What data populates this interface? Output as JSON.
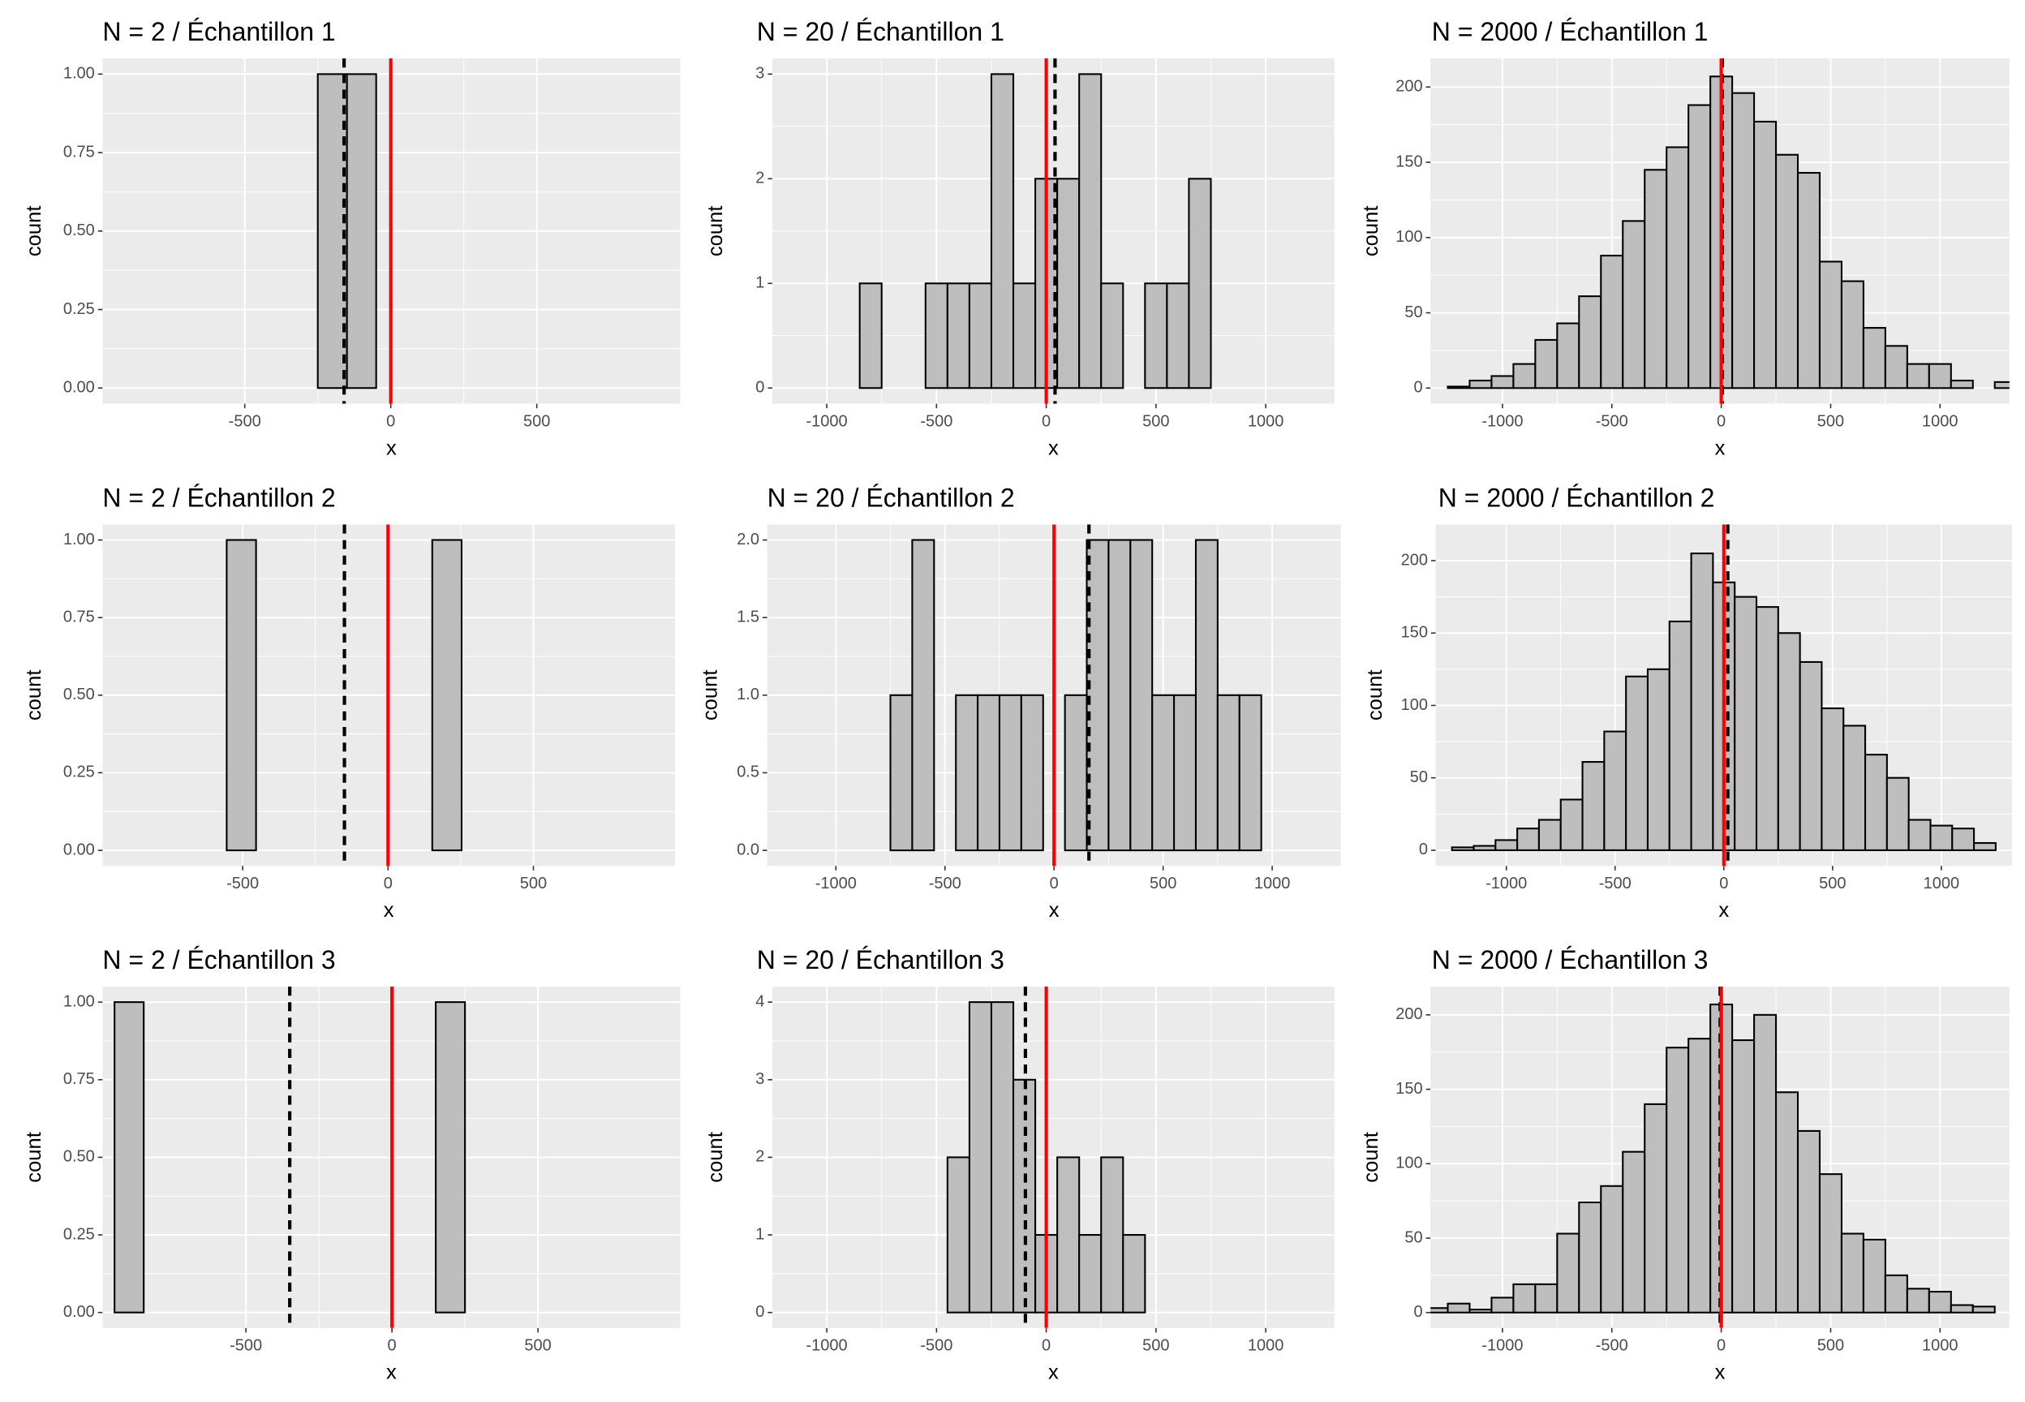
{
  "chart_data": [
    {
      "type": "histogram",
      "title": "N = 2 / Échantillon 1",
      "xlabel": "x",
      "ylabel": "count",
      "bins": [
        -250,
        -150,
        -50,
        50
      ],
      "counts": [
        1,
        1,
        0
      ],
      "xlim": [
        -987,
        991
      ],
      "ylim": [
        -0.05,
        1.05
      ],
      "xticks": [
        -500,
        0,
        500
      ],
      "yticks": [
        {
          "value": 0,
          "label": "0.00"
        },
        {
          "value": 0.25,
          "label": "0.25"
        },
        {
          "value": 0.5,
          "label": "0.50"
        },
        {
          "value": 0.75,
          "label": "0.75"
        },
        {
          "value": 1,
          "label": "1.00"
        }
      ],
      "vlines": [
        {
          "value": -160,
          "color": "#000000",
          "linetype": "dashed"
        },
        {
          "value": 0,
          "color": "#ff0000",
          "linetype": "solid"
        }
      ],
      "color": "#bebebe",
      "edgecolor": "#000000",
      "grid": true
    },
    {
      "type": "histogram",
      "title": "N = 20 / Échantillon 1",
      "xlabel": "x",
      "ylabel": "count",
      "bins": [
        -850,
        -750,
        -650,
        -550,
        -450,
        -350,
        -250,
        -150,
        -50,
        50,
        150,
        250,
        350,
        450,
        550,
        650,
        750
      ],
      "counts": [
        1,
        0,
        0,
        1,
        1,
        1,
        3,
        1,
        2,
        2,
        3,
        1,
        0,
        1,
        1,
        2
      ],
      "xlim": [
        -1248,
        1313
      ],
      "ylim": [
        -0.15,
        3.15
      ],
      "xticks": [
        -1000,
        -500,
        0,
        500,
        1000
      ],
      "yticks": [
        0,
        1,
        2,
        3
      ],
      "vlines": [
        {
          "value": 40,
          "color": "#000000",
          "linetype": "dashed"
        },
        {
          "value": 0,
          "color": "#ff0000",
          "linetype": "solid"
        }
      ],
      "color": "#bebebe",
      "edgecolor": "#000000",
      "grid": true
    },
    {
      "type": "histogram",
      "title": "N = 2000 / Échantillon 1",
      "xlabel": "x",
      "ylabel": "count",
      "bins": [
        -1250,
        -1150,
        -1050,
        -950,
        -850,
        -750,
        -650,
        -550,
        -450,
        -350,
        -250,
        -150,
        -50,
        50,
        150,
        250,
        350,
        450,
        550,
        650,
        750,
        850,
        950,
        1050,
        1150,
        1250,
        1350
      ],
      "counts": [
        1,
        5,
        8,
        16,
        32,
        43,
        61,
        88,
        111,
        145,
        160,
        188,
        207,
        196,
        177,
        155,
        143,
        84,
        71,
        40,
        28,
        16,
        16,
        5,
        0,
        4
      ],
      "xlim": [
        -1329,
        1317
      ],
      "ylim": [
        -10.4,
        219
      ],
      "xticks": [
        -1000,
        -500,
        0,
        500,
        1000
      ],
      "yticks": [
        0,
        50,
        100,
        150,
        200
      ],
      "vlines": [
        {
          "value": 5,
          "color": "#000000",
          "linetype": "dashed"
        },
        {
          "value": 0,
          "color": "#ff0000",
          "linetype": "solid"
        }
      ],
      "color": "#bebebe",
      "edgecolor": "#000000",
      "grid": true
    },
    {
      "type": "histogram",
      "title": "N = 2 / Échantillon 2",
      "xlabel": "x",
      "ylabel": "count",
      "bins": [
        -555,
        -454,
        -353,
        -252,
        -151,
        -50,
        51,
        152,
        253
      ],
      "counts": [
        1,
        0,
        0,
        0,
        0,
        0,
        0,
        1
      ],
      "xlim": [
        -982,
        987
      ],
      "ylim": [
        -0.05,
        1.05
      ],
      "xticks": [
        -500,
        0,
        500
      ],
      "yticks": [
        {
          "value": 0,
          "label": "0.00"
        },
        {
          "value": 0.25,
          "label": "0.25"
        },
        {
          "value": 0.5,
          "label": "0.50"
        },
        {
          "value": 0.75,
          "label": "0.75"
        },
        {
          "value": 1,
          "label": "1.00"
        }
      ],
      "vlines": [
        {
          "value": -150,
          "color": "#000000",
          "linetype": "dashed"
        },
        {
          "value": 0,
          "color": "#ff0000",
          "linetype": "solid"
        }
      ],
      "color": "#bebebe",
      "edgecolor": "#000000",
      "grid": true
    },
    {
      "type": "histogram",
      "title": "N = 20 / Échantillon 2",
      "xlabel": "x",
      "ylabel": "count",
      "bins": [
        -750,
        -650,
        -550,
        -450,
        -350,
        -250,
        -150,
        -50,
        50,
        150,
        250,
        350,
        450,
        550,
        650,
        750,
        850,
        950
      ],
      "counts": [
        1,
        2,
        0,
        1,
        1,
        1,
        1,
        0,
        1,
        2,
        2,
        2,
        1,
        1,
        2,
        1,
        1
      ],
      "xlim": [
        -1315,
        1315
      ],
      "ylim": [
        -0.1,
        2.1
      ],
      "xticks": [
        -1000,
        -500,
        0,
        500,
        1000
      ],
      "yticks": [
        {
          "value": 0,
          "label": "0.0"
        },
        {
          "value": 0.5,
          "label": "0.5"
        },
        {
          "value": 1,
          "label": "1.0"
        },
        {
          "value": 1.5,
          "label": "1.5"
        },
        {
          "value": 2,
          "label": "2.0"
        }
      ],
      "vlines": [
        {
          "value": 160,
          "color": "#000000",
          "linetype": "dashed"
        },
        {
          "value": 0,
          "color": "#ff0000",
          "linetype": "solid"
        }
      ],
      "color": "#bebebe",
      "edgecolor": "#000000",
      "grid": true
    },
    {
      "type": "histogram",
      "title": "N = 2000 / Échantillon 2",
      "xlabel": "x",
      "ylabel": "count",
      "bins": [
        -1250,
        -1150,
        -1050,
        -950,
        -850,
        -750,
        -650,
        -550,
        -450,
        -350,
        -250,
        -150,
        -50,
        50,
        150,
        250,
        350,
        450,
        550,
        650,
        750,
        850,
        950,
        1050,
        1150,
        1250
      ],
      "counts": [
        2,
        3,
        7,
        15,
        21,
        35,
        61,
        82,
        120,
        125,
        158,
        205,
        185,
        175,
        168,
        150,
        130,
        98,
        86,
        66,
        50,
        21,
        17,
        15,
        5
      ],
      "xlim": [
        -1325,
        1325
      ],
      "ylim": [
        -10.8,
        225
      ],
      "xticks": [
        -1000,
        -500,
        0,
        500,
        1000
      ],
      "yticks": [
        0,
        50,
        100,
        150,
        200
      ],
      "vlines": [
        {
          "value": 18,
          "color": "#000000",
          "linetype": "dashed"
        },
        {
          "value": 0,
          "color": "#ff0000",
          "linetype": "solid"
        }
      ],
      "color": "#bebebe",
      "edgecolor": "#000000",
      "grid": true
    },
    {
      "type": "histogram",
      "title": "N = 2 / Échantillon 3",
      "xlabel": "x",
      "ylabel": "count",
      "bins": [
        -950,
        -850,
        -750,
        -650,
        -550,
        -450,
        -350,
        -250,
        -150,
        -50,
        50,
        150,
        250
      ],
      "counts": [
        1,
        0,
        0,
        0,
        0,
        0,
        0,
        0,
        0,
        0,
        0,
        1
      ],
      "xlim": [
        -991,
        987
      ],
      "ylim": [
        -0.05,
        1.05
      ],
      "xticks": [
        -500,
        0,
        500
      ],
      "yticks": [
        {
          "value": 0,
          "label": "0.00"
        },
        {
          "value": 0.25,
          "label": "0.25"
        },
        {
          "value": 0.5,
          "label": "0.50"
        },
        {
          "value": 0.75,
          "label": "0.75"
        },
        {
          "value": 1,
          "label": "1.00"
        }
      ],
      "vlines": [
        {
          "value": -350,
          "color": "#000000",
          "linetype": "dashed"
        },
        {
          "value": 0,
          "color": "#ff0000",
          "linetype": "solid"
        }
      ],
      "color": "#bebebe",
      "edgecolor": "#000000",
      "grid": true
    },
    {
      "type": "histogram",
      "title": "N = 20 / Échantillon 3",
      "xlabel": "x",
      "ylabel": "count",
      "bins": [
        -450,
        -350,
        -250,
        -150,
        -50,
        50,
        150,
        250,
        350,
        450
      ],
      "counts": [
        2,
        4,
        4,
        3,
        1,
        2,
        1,
        2,
        1
      ],
      "xlim": [
        -1248,
        1313
      ],
      "ylim": [
        -0.2,
        4.2
      ],
      "xticks": [
        -1000,
        -500,
        0,
        500,
        1000
      ],
      "yticks": [
        0,
        1,
        2,
        3,
        4
      ],
      "vlines": [
        {
          "value": -95,
          "color": "#000000",
          "linetype": "dashed"
        },
        {
          "value": 0,
          "color": "#ff0000",
          "linetype": "solid"
        }
      ],
      "color": "#bebebe",
      "edgecolor": "#000000",
      "grid": true
    },
    {
      "type": "histogram",
      "title": "N = 2000 / Échantillon 3",
      "xlabel": "x",
      "ylabel": "count",
      "bins": [
        -1350,
        -1250,
        -1150,
        -1050,
        -950,
        -850,
        -750,
        -650,
        -550,
        -450,
        -350,
        -250,
        -150,
        -50,
        50,
        150,
        250,
        350,
        450,
        550,
        650,
        750,
        850,
        950,
        1050,
        1150,
        1250
      ],
      "counts": [
        3,
        6,
        2,
        10,
        19,
        19,
        53,
        74,
        85,
        108,
        140,
        178,
        184,
        207,
        183,
        200,
        148,
        122,
        93,
        53,
        49,
        25,
        16,
        14,
        5,
        4
      ],
      "xlim": [
        -1329,
        1317
      ],
      "ylim": [
        -10.4,
        219
      ],
      "xticks": [
        -1000,
        -500,
        0,
        500,
        1000
      ],
      "yticks": [
        0,
        50,
        100,
        150,
        200
      ],
      "vlines": [
        {
          "value": -5,
          "color": "#000000",
          "linetype": "dashed"
        },
        {
          "value": 0,
          "color": "#ff0000",
          "linetype": "solid"
        }
      ],
      "color": "#bebebe",
      "edgecolor": "#000000",
      "grid": true
    }
  ]
}
